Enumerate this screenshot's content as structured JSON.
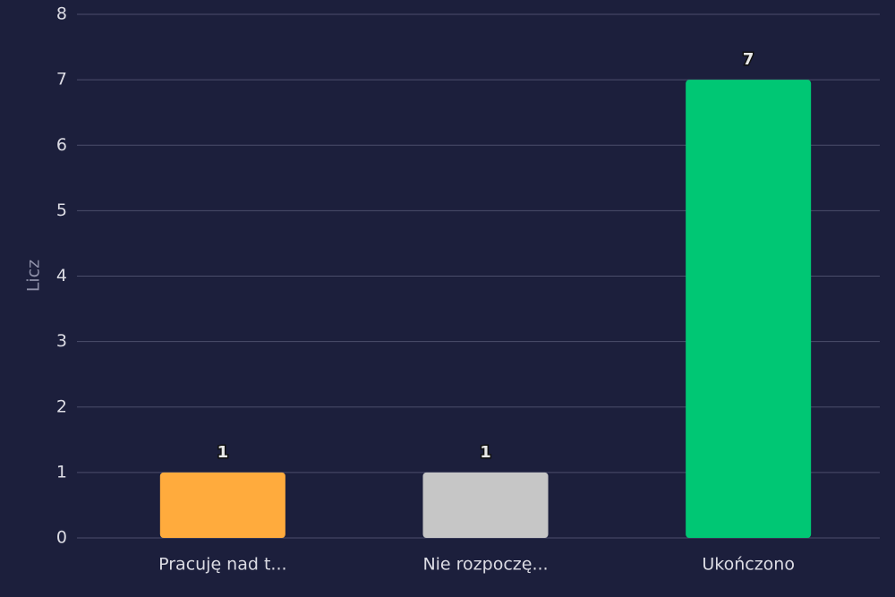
{
  "chart_data": {
    "type": "bar",
    "y_label": "Licz",
    "categories": [
      "Pracuję nad t...",
      "Nie rozpoczę...",
      "Ukończono"
    ],
    "values": [
      1,
      1,
      7
    ],
    "colors": [
      "#ffab3d",
      "#c6c6c6",
      "#00c774"
    ],
    "ylim": [
      0,
      8
    ],
    "yticks": [
      0,
      1,
      2,
      3,
      4,
      5,
      6,
      7,
      8
    ],
    "grid": true
  }
}
